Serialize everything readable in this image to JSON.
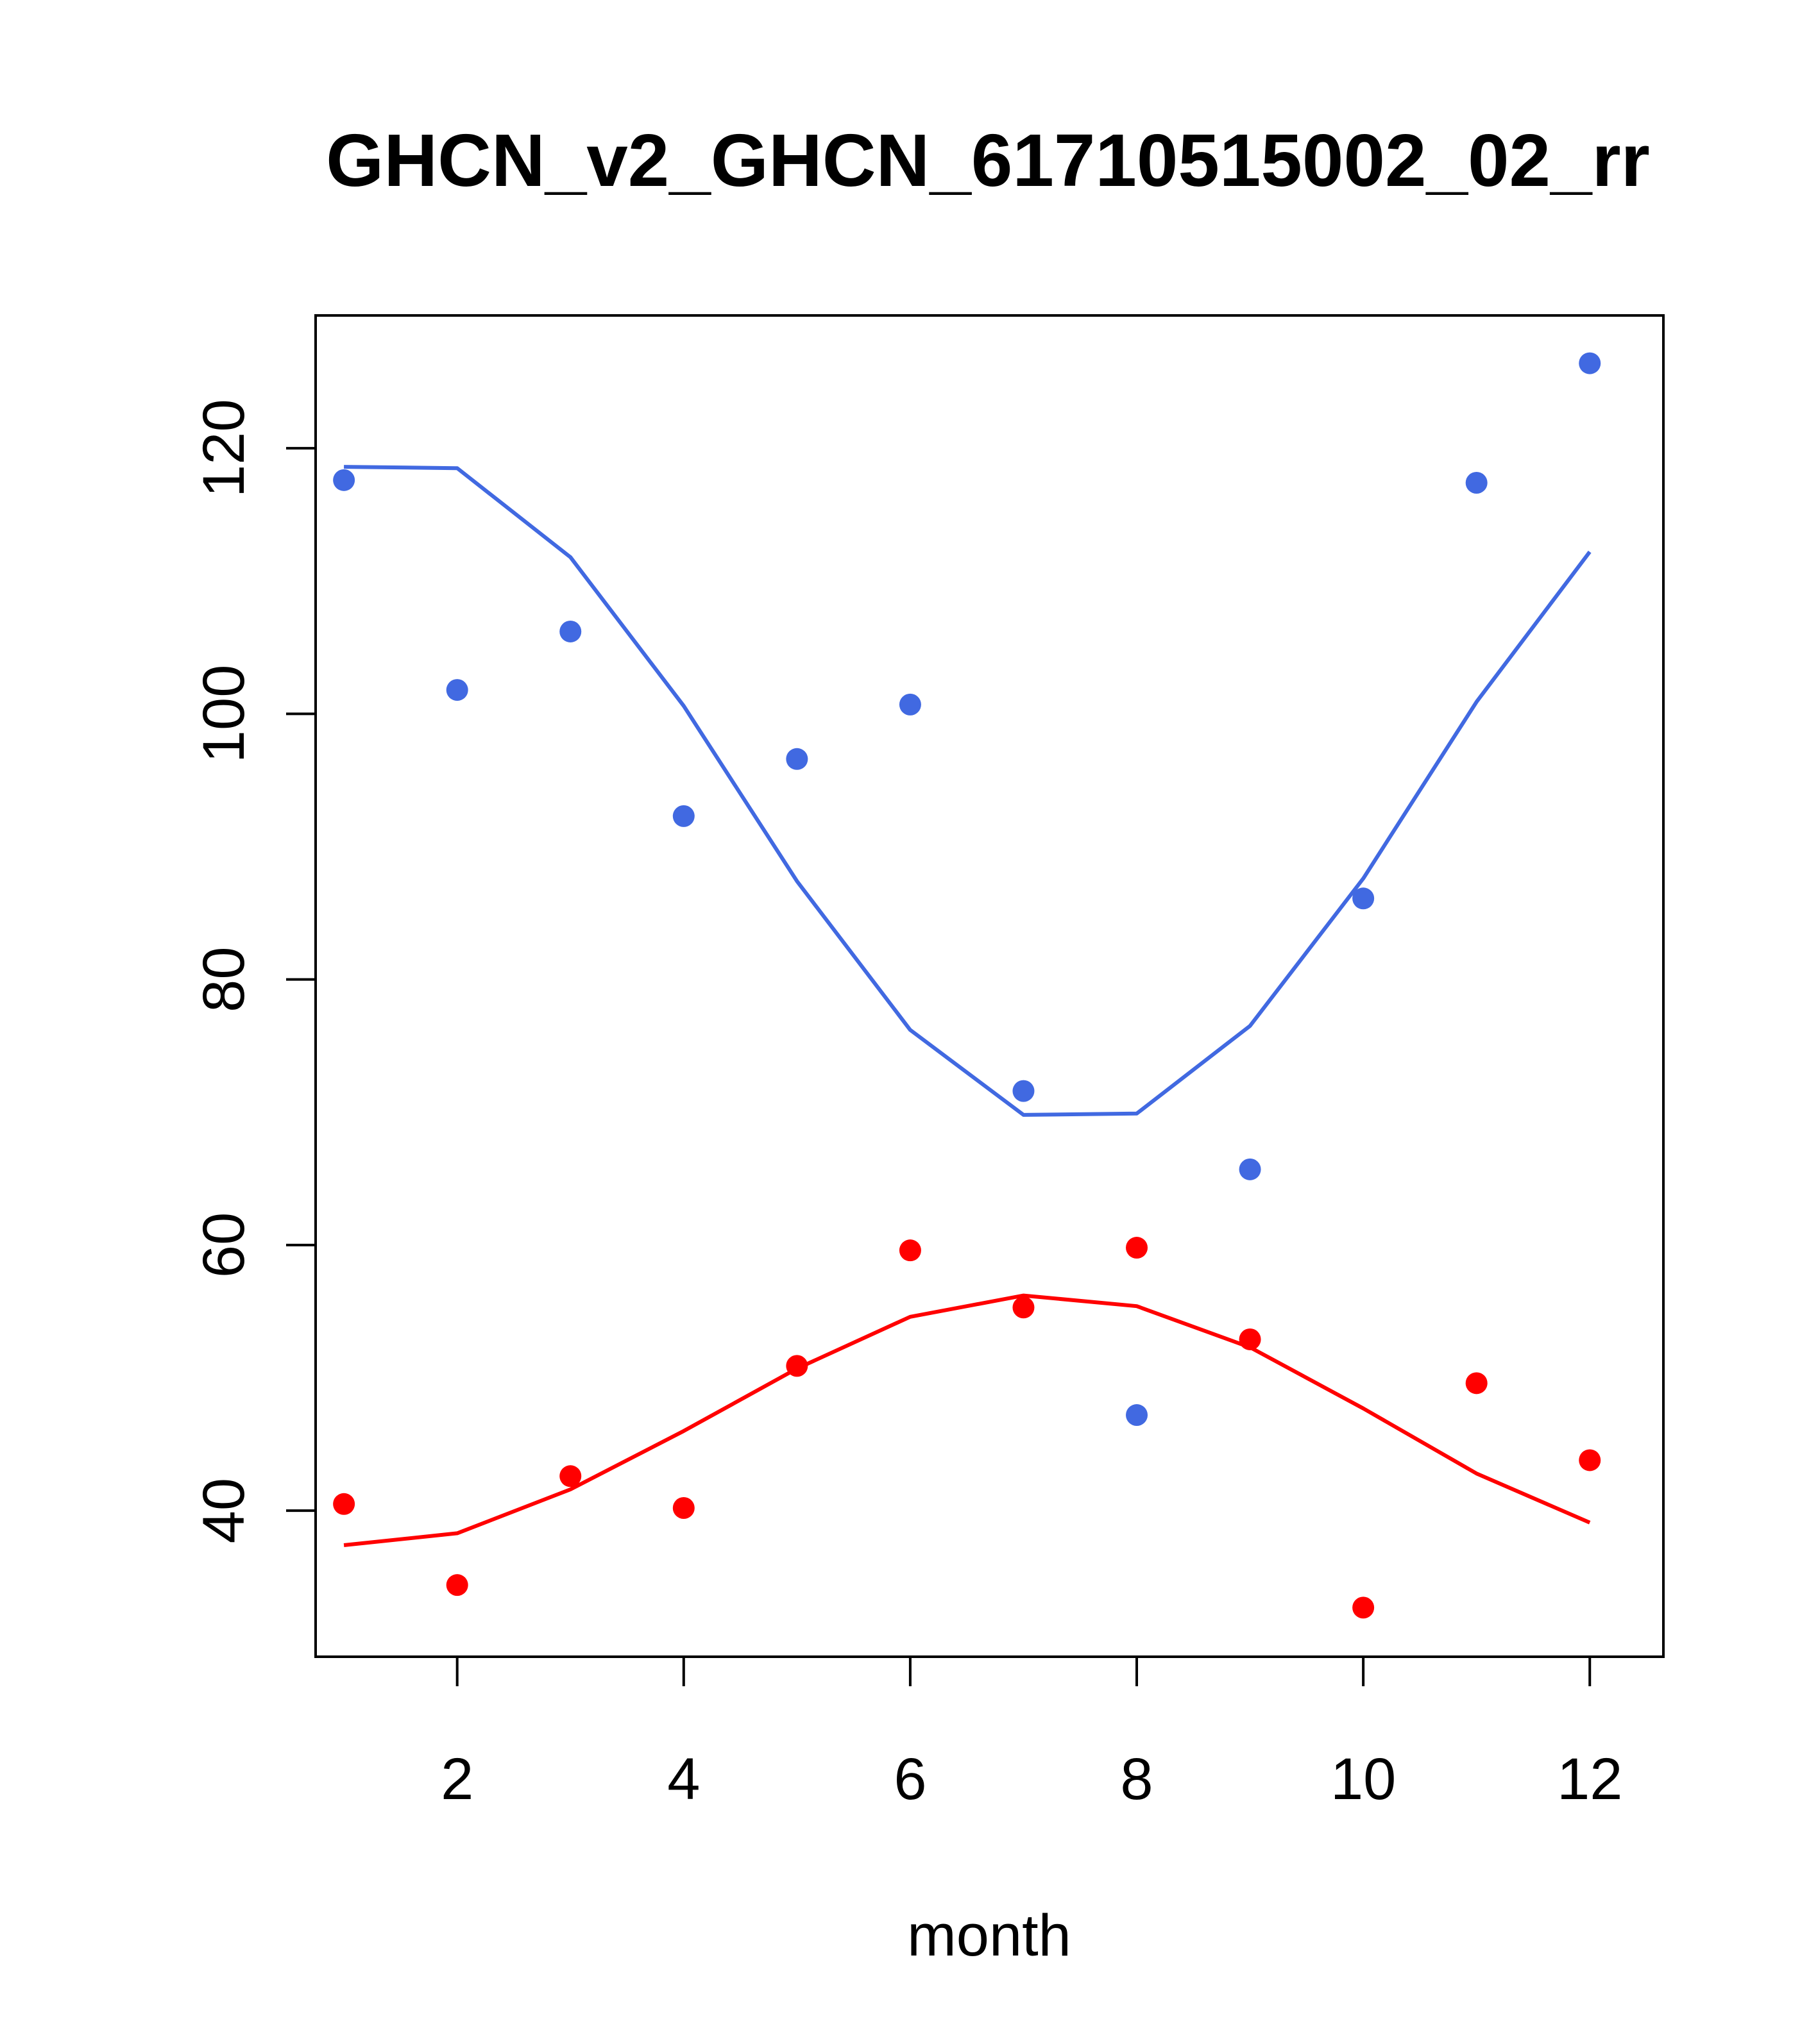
{
  "chart_data": {
    "type": "scatter",
    "title": "GHCN_v2_GHCN_61710515002_02_rr",
    "xlabel": "month",
    "ylabel": "",
    "xlim": [
      0.75,
      12.65
    ],
    "ylim": [
      29,
      130
    ],
    "xticks": [
      2,
      4,
      6,
      8,
      10,
      12
    ],
    "yticks": [
      40,
      60,
      80,
      100,
      120
    ],
    "grid": false,
    "legend": "none",
    "series": [
      {
        "color": "#4169E1",
        "points": {
          "x": [
            1,
            2,
            3,
            4,
            5,
            6,
            7,
            8,
            9,
            10,
            11,
            12
          ],
          "y": [
            117.6,
            101.8,
            106.2,
            92.3,
            96.6,
            100.7,
            71.6,
            47.2,
            65.7,
            86.1,
            117.4,
            126.4
          ]
        },
        "curve": {
          "x": [
            1,
            2,
            3,
            4,
            5,
            6,
            7,
            8,
            9,
            10,
            11,
            12
          ],
          "y": [
            118.6,
            118.5,
            111.8,
            100.6,
            87.4,
            76.2,
            69.8,
            69.9,
            76.5,
            87.6,
            100.9,
            112.2
          ]
        }
      },
      {
        "color": "#FF0000",
        "points": {
          "x": [
            1,
            2,
            3,
            4,
            5,
            6,
            7,
            8,
            9,
            10,
            11,
            12
          ],
          "y": [
            40.5,
            34.4,
            42.6,
            40.2,
            50.9,
            59.6,
            55.3,
            59.8,
            52.9,
            32.7,
            49.6,
            43.8
          ]
        },
        "curve": {
          "x": [
            1,
            2,
            3,
            4,
            5,
            6,
            7,
            8,
            9,
            10,
            11,
            12
          ],
          "y": [
            37.4,
            38.3,
            41.6,
            46.0,
            50.7,
            54.6,
            56.2,
            55.4,
            52.3,
            47.7,
            42.8,
            39.1
          ]
        }
      }
    ]
  }
}
